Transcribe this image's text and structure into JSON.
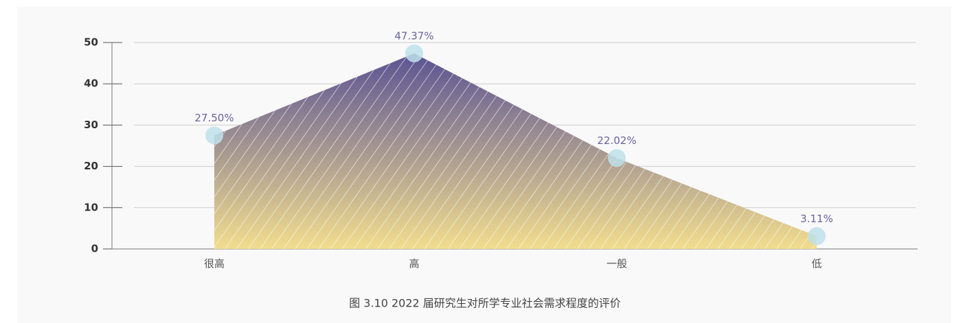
{
  "chart_data": {
    "type": "area",
    "caption": "图 3.10  2022 届研究生对所学专业社会需求程度的评价",
    "categories": [
      "很高",
      "高",
      "一般",
      "低"
    ],
    "values": [
      27.5,
      47.37,
      22.02,
      3.11
    ],
    "value_labels": [
      "27.50%",
      "47.37%",
      "22.02%",
      "3.11%"
    ],
    "colors": {
      "top": "#5b5393",
      "bottom": "#f2dd8e",
      "point": "#bfe0ea",
      "label": "#6a63a0"
    },
    "ylim": [
      0,
      50
    ],
    "yticks": [
      0,
      10,
      20,
      30,
      40,
      50
    ],
    "grid": true
  }
}
